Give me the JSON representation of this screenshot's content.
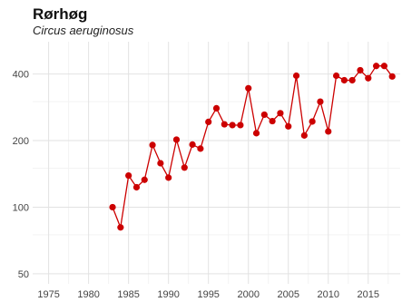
{
  "chart_data": {
    "type": "line",
    "title": "Rørhøg",
    "subtitle": "Circus aeruginosus",
    "xlabel": "",
    "ylabel": "",
    "y_scale": "log",
    "xlim": [
      1973,
      2019
    ],
    "ylim": [
      45,
      560
    ],
    "x_ticks": [
      1975,
      1980,
      1985,
      1990,
      1995,
      2000,
      2005,
      2010,
      2015
    ],
    "y_ticks": [
      50,
      100,
      200,
      400
    ],
    "grid": true,
    "legend": "none",
    "color": "#cc0000",
    "x": [
      1983,
      1984,
      1985,
      1986,
      1987,
      1988,
      1989,
      1990,
      1991,
      1992,
      1993,
      1994,
      1995,
      1996,
      1997,
      1998,
      1999,
      2000,
      2001,
      2002,
      2003,
      2004,
      2005,
      2006,
      2007,
      2008,
      2009,
      2010,
      2011,
      2012,
      2013,
      2014,
      2015,
      2016,
      2017,
      2018
    ],
    "y": [
      100,
      81,
      139,
      123,
      133,
      191,
      158,
      136,
      202,
      151,
      192,
      184,
      243,
      280,
      237,
      235,
      235,
      345,
      216,
      262,
      245,
      266,
      232,
      393,
      211,
      244,
      300,
      220,
      393,
      375,
      375,
      416,
      383,
      435,
      435,
      390
    ]
  }
}
